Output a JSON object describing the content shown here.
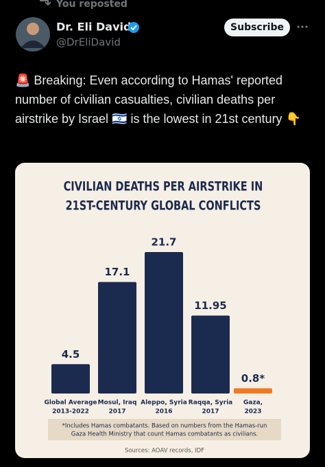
{
  "repost_label": "You reposted",
  "author": {
    "name": "Dr. Eli David",
    "handle": "@DrEliDavid"
  },
  "subscribe_button": "Subscribe",
  "tweet_text": "🚨 Breaking: Even according to Hamas' reported number of civilian casualties, civilian deaths per airstrike by Israel 🇮🇱 is the lowest in 21st century 👇",
  "chart_data": {
    "type": "bar",
    "title": [
      "CIVILIAN DEATHS PER AIRSTRIKE IN",
      "21ST-CENTURY GLOBAL CONFLICTS"
    ],
    "categories": [
      [
        "Global Average",
        "2013-2022"
      ],
      [
        "Mosul, Iraq",
        "2017"
      ],
      [
        "Aleppo, Syria",
        "2016"
      ],
      [
        "Raqqa, Syria",
        "2017"
      ],
      [
        "Gaza,",
        "2023"
      ]
    ],
    "values": [
      4.5,
      17.1,
      21.7,
      11.95,
      0.8
    ],
    "value_labels": [
      "4.5",
      "17.1",
      "21.7",
      "11.95",
      "0.8*"
    ],
    "colors": [
      "#1b2a4f",
      "#1b2a4f",
      "#1b2a4f",
      "#1b2a4f",
      "#f07a22"
    ],
    "footnote": [
      "*Includes Hamas combatants. Based on numbers from the Hamas-run",
      "Gaza Health Ministry that count Hamas combatants as civilians."
    ],
    "source": "Sources: AOAV records, IDF"
  }
}
